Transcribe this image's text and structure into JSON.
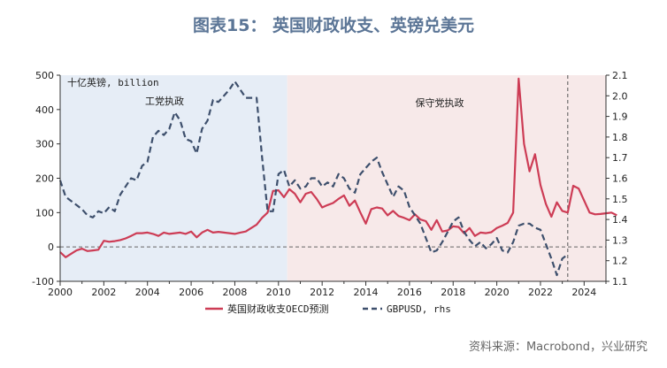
{
  "page": {
    "title": "图表15： 英国财政收支、英镑兑美元",
    "source": "资料来源：Macrobond，兴业研究"
  },
  "chart_data": {
    "type": "line",
    "title": "图表15： 英国财政收支、英镑兑美元",
    "unit_label": "十亿英镑, billion",
    "x_ticks": [
      "2000",
      "2002",
      "2004",
      "2006",
      "2008",
      "2010",
      "2012",
      "2014",
      "2016",
      "2018",
      "2020",
      "2022",
      "2024"
    ],
    "xlim": [
      2000,
      2025
    ],
    "y_left": {
      "ticks": [
        -100,
        0,
        100,
        200,
        300,
        400,
        500
      ],
      "lim": [
        -100,
        500
      ]
    },
    "y_right": {
      "ticks": [
        "1.1",
        "1.2",
        "1.3",
        "1.4",
        "1.5",
        "1.6",
        "1.7",
        "1.8",
        "1.9",
        "2.0",
        "2.1"
      ],
      "lim": [
        1.1,
        2.1
      ]
    },
    "shaded_periods": [
      {
        "label": "工党执政",
        "start": 2000,
        "end": 2010.4,
        "color": "#e6edf6"
      },
      {
        "label": "保守党执政",
        "start": 2010.4,
        "end": 2025,
        "color": "#f7e9e9"
      }
    ],
    "reference_lines": [
      {
        "axis": "x",
        "value": 2023.25,
        "style": "dashed"
      },
      {
        "axis": "y_left",
        "value": 0,
        "style": "dashed"
      }
    ],
    "legend": {
      "position": "bottom"
    },
    "series": [
      {
        "name": "英国财政收支OECD预测",
        "axis": "left",
        "color": "#cd3c55",
        "style": "solid",
        "points": [
          [
            2000.0,
            -15
          ],
          [
            2000.25,
            -30
          ],
          [
            2000.5,
            -20
          ],
          [
            2000.75,
            -10
          ],
          [
            2001.0,
            -5
          ],
          [
            2001.25,
            -12
          ],
          [
            2001.5,
            -10
          ],
          [
            2001.75,
            -8
          ],
          [
            2002.0,
            18
          ],
          [
            2002.25,
            15
          ],
          [
            2002.5,
            17
          ],
          [
            2002.75,
            20
          ],
          [
            2003.0,
            25
          ],
          [
            2003.25,
            32
          ],
          [
            2003.5,
            40
          ],
          [
            2003.75,
            40
          ],
          [
            2004.0,
            42
          ],
          [
            2004.25,
            38
          ],
          [
            2004.5,
            32
          ],
          [
            2004.75,
            42
          ],
          [
            2005.0,
            38
          ],
          [
            2005.25,
            40
          ],
          [
            2005.5,
            42
          ],
          [
            2005.75,
            38
          ],
          [
            2006.0,
            45
          ],
          [
            2006.25,
            28
          ],
          [
            2006.5,
            42
          ],
          [
            2006.75,
            50
          ],
          [
            2007.0,
            42
          ],
          [
            2007.25,
            44
          ],
          [
            2007.5,
            42
          ],
          [
            2007.75,
            40
          ],
          [
            2008.0,
            38
          ],
          [
            2008.25,
            42
          ],
          [
            2008.5,
            45
          ],
          [
            2008.75,
            55
          ],
          [
            2009.0,
            65
          ],
          [
            2009.25,
            85
          ],
          [
            2009.5,
            100
          ],
          [
            2009.75,
            163
          ],
          [
            2010.0,
            165
          ],
          [
            2010.25,
            145
          ],
          [
            2010.5,
            168
          ],
          [
            2010.75,
            155
          ],
          [
            2011.0,
            130
          ],
          [
            2011.25,
            155
          ],
          [
            2011.5,
            160
          ],
          [
            2011.75,
            140
          ],
          [
            2012.0,
            115
          ],
          [
            2012.25,
            122
          ],
          [
            2012.5,
            128
          ],
          [
            2012.75,
            140
          ],
          [
            2013.0,
            150
          ],
          [
            2013.25,
            120
          ],
          [
            2013.5,
            135
          ],
          [
            2013.75,
            100
          ],
          [
            2014.0,
            68
          ],
          [
            2014.25,
            110
          ],
          [
            2014.5,
            115
          ],
          [
            2014.75,
            112
          ],
          [
            2015.0,
            92
          ],
          [
            2015.25,
            105
          ],
          [
            2015.5,
            90
          ],
          [
            2015.75,
            85
          ],
          [
            2016.0,
            78
          ],
          [
            2016.25,
            95
          ],
          [
            2016.5,
            80
          ],
          [
            2016.75,
            75
          ],
          [
            2017.0,
            50
          ],
          [
            2017.25,
            78
          ],
          [
            2017.5,
            45
          ],
          [
            2017.75,
            48
          ],
          [
            2018.0,
            60
          ],
          [
            2018.25,
            58
          ],
          [
            2018.5,
            40
          ],
          [
            2018.75,
            55
          ],
          [
            2019.0,
            32
          ],
          [
            2019.25,
            42
          ],
          [
            2019.5,
            40
          ],
          [
            2019.75,
            43
          ],
          [
            2020.0,
            55
          ],
          [
            2020.25,
            62
          ],
          [
            2020.5,
            70
          ],
          [
            2020.75,
            100
          ],
          [
            2021.0,
            490
          ],
          [
            2021.25,
            300
          ],
          [
            2021.5,
            220
          ],
          [
            2021.75,
            270
          ],
          [
            2022.0,
            180
          ],
          [
            2022.25,
            125
          ],
          [
            2022.5,
            88
          ],
          [
            2022.75,
            130
          ],
          [
            2023.0,
            105
          ],
          [
            2023.25,
            100
          ],
          [
            2023.5,
            178
          ],
          [
            2023.75,
            170
          ],
          [
            2024.0,
            135
          ],
          [
            2024.25,
            100
          ],
          [
            2024.5,
            95
          ],
          [
            2024.75,
            96
          ],
          [
            2025.0,
            98
          ],
          [
            2025.25,
            100
          ],
          [
            2025.5,
            92
          ]
        ]
      },
      {
        "name": "GBPUSD, rhs",
        "axis": "right",
        "color": "#3d4f6c",
        "style": "dashed",
        "points": [
          [
            2000.0,
            1.59
          ],
          [
            2000.25,
            1.51
          ],
          [
            2000.5,
            1.49
          ],
          [
            2000.75,
            1.47
          ],
          [
            2001.0,
            1.45
          ],
          [
            2001.25,
            1.42
          ],
          [
            2001.5,
            1.41
          ],
          [
            2001.75,
            1.44
          ],
          [
            2002.0,
            1.43
          ],
          [
            2002.25,
            1.46
          ],
          [
            2002.5,
            1.44
          ],
          [
            2002.75,
            1.52
          ],
          [
            2003.0,
            1.56
          ],
          [
            2003.25,
            1.6
          ],
          [
            2003.5,
            1.59
          ],
          [
            2003.75,
            1.66
          ],
          [
            2004.0,
            1.68
          ],
          [
            2004.25,
            1.8
          ],
          [
            2004.5,
            1.83
          ],
          [
            2004.75,
            1.81
          ],
          [
            2005.0,
            1.84
          ],
          [
            2005.25,
            1.92
          ],
          [
            2005.5,
            1.88
          ],
          [
            2005.75,
            1.79
          ],
          [
            2006.0,
            1.78
          ],
          [
            2006.25,
            1.72
          ],
          [
            2006.5,
            1.84
          ],
          [
            2006.75,
            1.88
          ],
          [
            2007.0,
            1.98
          ],
          [
            2007.25,
            1.97
          ],
          [
            2007.5,
            2.0
          ],
          [
            2007.75,
            2.03
          ],
          [
            2008.0,
            2.07
          ],
          [
            2008.25,
            2.03
          ],
          [
            2008.5,
            1.99
          ],
          [
            2008.75,
            1.99
          ],
          [
            2009.0,
            1.99
          ],
          [
            2009.25,
            1.7
          ],
          [
            2009.5,
            1.44
          ],
          [
            2009.75,
            1.44
          ],
          [
            2010.0,
            1.62
          ],
          [
            2010.25,
            1.64
          ],
          [
            2010.5,
            1.56
          ],
          [
            2010.75,
            1.59
          ],
          [
            2011.0,
            1.55
          ],
          [
            2011.25,
            1.56
          ],
          [
            2011.5,
            1.6
          ],
          [
            2011.75,
            1.6
          ],
          [
            2012.0,
            1.56
          ],
          [
            2012.25,
            1.58
          ],
          [
            2012.5,
            1.56
          ],
          [
            2012.75,
            1.62
          ],
          [
            2013.0,
            1.6
          ],
          [
            2013.25,
            1.55
          ],
          [
            2013.5,
            1.53
          ],
          [
            2013.75,
            1.62
          ],
          [
            2014.0,
            1.65
          ],
          [
            2014.25,
            1.68
          ],
          [
            2014.5,
            1.7
          ],
          [
            2014.75,
            1.63
          ],
          [
            2015.0,
            1.57
          ],
          [
            2015.25,
            1.51
          ],
          [
            2015.5,
            1.56
          ],
          [
            2015.75,
            1.54
          ],
          [
            2016.0,
            1.46
          ],
          [
            2016.25,
            1.42
          ],
          [
            2016.5,
            1.38
          ],
          [
            2016.75,
            1.31
          ],
          [
            2017.0,
            1.24
          ],
          [
            2017.25,
            1.25
          ],
          [
            2017.5,
            1.29
          ],
          [
            2017.75,
            1.34
          ],
          [
            2018.0,
            1.39
          ],
          [
            2018.25,
            1.41
          ],
          [
            2018.5,
            1.34
          ],
          [
            2018.75,
            1.3
          ],
          [
            2019.0,
            1.27
          ],
          [
            2019.25,
            1.29
          ],
          [
            2019.5,
            1.26
          ],
          [
            2019.75,
            1.28
          ],
          [
            2020.0,
            1.31
          ],
          [
            2020.25,
            1.25
          ],
          [
            2020.5,
            1.24
          ],
          [
            2020.75,
            1.29
          ],
          [
            2021.0,
            1.37
          ],
          [
            2021.25,
            1.38
          ],
          [
            2021.5,
            1.38
          ],
          [
            2021.75,
            1.36
          ],
          [
            2022.0,
            1.35
          ],
          [
            2022.25,
            1.28
          ],
          [
            2022.5,
            1.21
          ],
          [
            2022.75,
            1.13
          ],
          [
            2023.0,
            1.21
          ],
          [
            2023.25,
            1.23
          ]
        ]
      }
    ]
  }
}
